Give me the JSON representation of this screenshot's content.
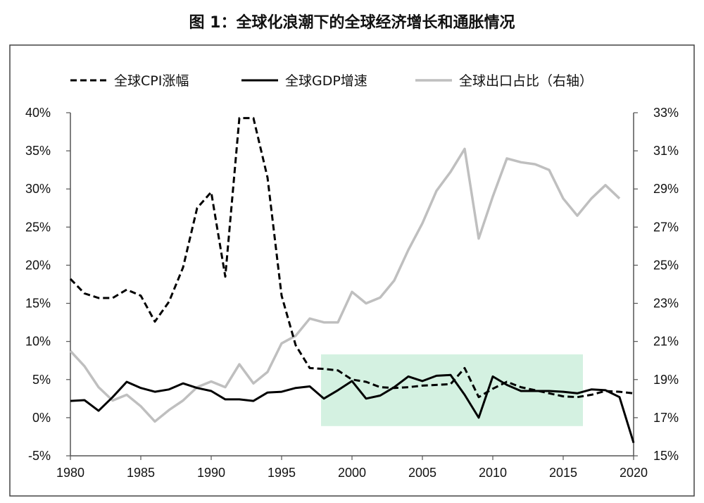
{
  "title": "图 1：全球化浪潮下的全球经济增长和通胀情况",
  "chart_data": {
    "type": "line",
    "x": [
      1980,
      1981,
      1982,
      1983,
      1984,
      1985,
      1986,
      1987,
      1988,
      1989,
      1990,
      1991,
      1992,
      1993,
      1994,
      1995,
      1996,
      1997,
      1998,
      1999,
      2000,
      2001,
      2002,
      2003,
      2004,
      2005,
      2006,
      2007,
      2008,
      2009,
      2010,
      2011,
      2012,
      2013,
      2014,
      2015,
      2016,
      2017,
      2018,
      2019,
      2020
    ],
    "xlim": [
      1980,
      2020
    ],
    "x_ticks": [
      "1980",
      "1985",
      "1990",
      "1995",
      "2000",
      "2005",
      "2010",
      "2015",
      "2020"
    ],
    "ylim": [
      -0.05,
      0.4
    ],
    "y_ticks": [
      "-5%",
      "0%",
      "5%",
      "10%",
      "15%",
      "20%",
      "25%",
      "30%",
      "35%",
      "40%"
    ],
    "y2lim": [
      0.15,
      0.33
    ],
    "y2_ticks": [
      "15%",
      "17%",
      "19%",
      "21%",
      "23%",
      "25%",
      "27%",
      "29%",
      "31%",
      "33%"
    ],
    "legend_position": "top",
    "series": [
      {
        "name": "全球CPI涨幅",
        "axis": "left",
        "style": "dashed",
        "color": "#000000",
        "values": [
          0.182,
          0.163,
          0.157,
          0.157,
          0.168,
          0.16,
          0.126,
          0.152,
          0.197,
          0.275,
          0.296,
          0.185,
          0.393,
          0.393,
          0.315,
          0.16,
          0.095,
          0.065,
          0.064,
          0.062,
          0.05,
          0.047,
          0.04,
          0.039,
          0.04,
          0.042,
          0.043,
          0.044,
          0.065,
          0.027,
          0.038,
          0.047,
          0.04,
          0.036,
          0.032,
          0.028,
          0.027,
          0.03,
          0.035,
          0.034,
          0.032
        ],
        "x": [
          1980,
          1981,
          1982,
          1983,
          1984,
          1985,
          1986,
          1987,
          1988,
          1989,
          1990,
          1991,
          1992,
          1993,
          1994,
          1995,
          1996,
          1997,
          1998,
          1999,
          2000,
          2001,
          2002,
          2003,
          2004,
          2005,
          2006,
          2007,
          2008,
          2009,
          2010,
          2011,
          2012,
          2013,
          2014,
          2015,
          2016,
          2017,
          2018,
          2019,
          2020
        ]
      },
      {
        "name": "全球GDP增速",
        "axis": "left",
        "style": "solid",
        "color": "#000000",
        "values": [
          0.022,
          0.023,
          0.009,
          0.027,
          0.047,
          0.039,
          0.034,
          0.037,
          0.045,
          0.039,
          0.035,
          0.024,
          0.024,
          0.022,
          0.033,
          0.034,
          0.039,
          0.041,
          0.025,
          0.036,
          0.048,
          0.025,
          0.029,
          0.04,
          0.054,
          0.048,
          0.055,
          0.056,
          0.03,
          0.0,
          0.054,
          0.043,
          0.035,
          0.035,
          0.035,
          0.034,
          0.032,
          0.037,
          0.036,
          0.027,
          -0.033
        ],
        "x": [
          1980,
          1981,
          1982,
          1983,
          1984,
          1985,
          1986,
          1987,
          1988,
          1989,
          1990,
          1991,
          1992,
          1993,
          1994,
          1995,
          1996,
          1997,
          1998,
          1999,
          2000,
          2001,
          2002,
          2003,
          2004,
          2005,
          2006,
          2007,
          2008,
          2009,
          2010,
          2011,
          2012,
          2013,
          2014,
          2015,
          2016,
          2017,
          2018,
          2019,
          2020
        ]
      },
      {
        "name": "全球出口占比（右轴）",
        "axis": "right",
        "style": "solid",
        "color": "#bfbfbf",
        "values": [
          0.205,
          0.197,
          0.186,
          0.179,
          0.182,
          0.176,
          0.168,
          0.174,
          0.179,
          0.186,
          0.189,
          0.186,
          0.198,
          0.188,
          0.194,
          0.209,
          0.213,
          0.222,
          0.22,
          0.22,
          0.236,
          0.23,
          0.233,
          0.242,
          0.258,
          0.272,
          0.289,
          0.299,
          0.311,
          0.264,
          0.286,
          0.306,
          0.304,
          0.303,
          0.3,
          0.285,
          0.276,
          0.285,
          0.292,
          0.285
        ],
        "x": [
          1980,
          1981,
          1982,
          1983,
          1984,
          1985,
          1986,
          1987,
          1988,
          1989,
          1990,
          1991,
          1992,
          1993,
          1994,
          1995,
          1996,
          1997,
          1998,
          1999,
          2000,
          2001,
          2002,
          2003,
          2004,
          2005,
          2006,
          2007,
          2008,
          2009,
          2010,
          2011,
          2012,
          2013,
          2014,
          2015,
          2016,
          2017,
          2018,
          2019
        ]
      }
    ],
    "highlight_band": {
      "x_range": [
        1997.8,
        2016.4
      ],
      "y_range": [
        -0.011,
        0.083
      ],
      "color": "#d4f1e1"
    }
  }
}
